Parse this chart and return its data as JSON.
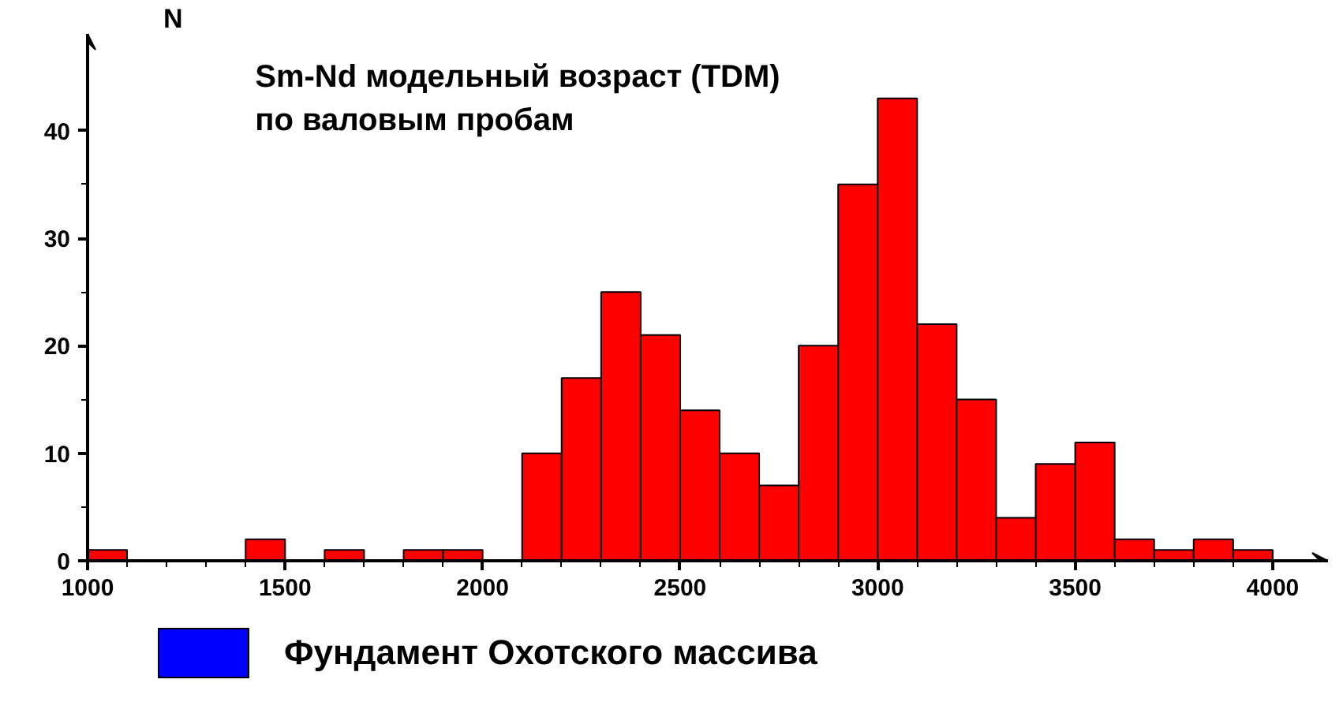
{
  "chart_data": {
    "type": "histogram",
    "title": "Sm-Nd модельный возраст (TDM)\nпо валовым пробам",
    "ylabel": "N",
    "bins": [
      1000,
      1100,
      1200,
      1300,
      1400,
      1500,
      1600,
      1700,
      1800,
      1900,
      2000,
      2100,
      2200,
      2300,
      2400,
      2500,
      2600,
      2700,
      2800,
      2900,
      3000,
      3100,
      3200,
      3300,
      3400,
      3500,
      3600,
      3700,
      3800,
      3900,
      4000
    ],
    "values": [
      1,
      0,
      0,
      0,
      2,
      0,
      1,
      0,
      1,
      1,
      0,
      10,
      17,
      25,
      21,
      14,
      10,
      7,
      20,
      35,
      43,
      22,
      15,
      4,
      9,
      11,
      2,
      1,
      2,
      1
    ],
    "color": "#ff0000",
    "xlim": [
      1000,
      4140
    ],
    "ylim": [
      0,
      49
    ],
    "xticks": [
      1000,
      1500,
      2000,
      2500,
      3000,
      3500,
      4000
    ],
    "yticks": [
      0,
      10,
      20,
      30,
      40
    ],
    "grid": false,
    "annotations": [
      "Фундамент Охотского массива"
    ]
  }
}
